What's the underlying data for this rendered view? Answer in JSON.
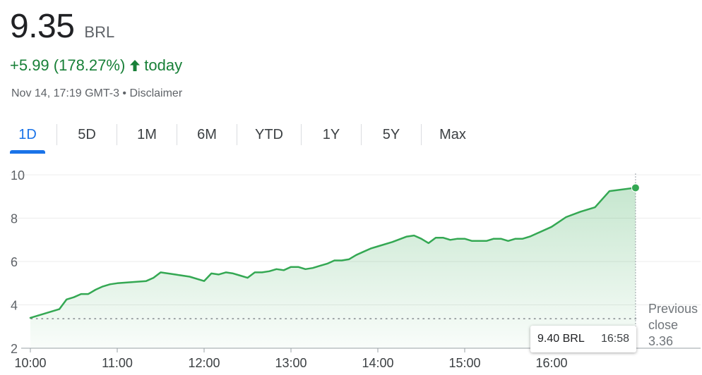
{
  "header": {
    "price": "9.35",
    "currency": "BRL",
    "change": "+5.99 (178.27%)",
    "change_suffix": "today",
    "timestamp": "Nov 14, 17:19 GMT-3",
    "separator": "•",
    "disclaimer": "Disclaimer"
  },
  "tabs": [
    {
      "label": "1D",
      "active": true
    },
    {
      "label": "5D"
    },
    {
      "label": "1M"
    },
    {
      "label": "6M"
    },
    {
      "label": "YTD"
    },
    {
      "label": "1Y"
    },
    {
      "label": "5Y"
    },
    {
      "label": "Max"
    }
  ],
  "tooltip": {
    "value": "9.40 BRL",
    "time": "16:58"
  },
  "colors": {
    "line": "#34a853",
    "positive_text": "#188038",
    "accent": "#1a73e8"
  },
  "chart_data": {
    "type": "area",
    "x_tick_labels": [
      "10:00",
      "11:00",
      "12:00",
      "13:00",
      "14:00",
      "15:00",
      "16:00"
    ],
    "y_tick_labels": [
      "2",
      "4",
      "6",
      "8",
      "10"
    ],
    "ylim": [
      2,
      10
    ],
    "grid": "horizontal",
    "previous_close": {
      "label_1": "Previous",
      "label_2": "close",
      "value": 3.36,
      "value_label": "3.36"
    },
    "series": [
      {
        "points": [
          [
            "10:00",
            3.4
          ],
          [
            "10:20",
            3.8
          ],
          [
            "10:25",
            4.25
          ],
          [
            "10:30",
            4.35
          ],
          [
            "10:35",
            4.5
          ],
          [
            "10:40",
            4.5
          ],
          [
            "10:45",
            4.7
          ],
          [
            "10:50",
            4.85
          ],
          [
            "10:55",
            4.95
          ],
          [
            "11:00",
            5.0
          ],
          [
            "11:10",
            5.05
          ],
          [
            "11:20",
            5.1
          ],
          [
            "11:25",
            5.25
          ],
          [
            "11:30",
            5.5
          ],
          [
            "11:40",
            5.4
          ],
          [
            "11:50",
            5.3
          ],
          [
            "12:00",
            5.1
          ],
          [
            "12:05",
            5.45
          ],
          [
            "12:10",
            5.4
          ],
          [
            "12:15",
            5.5
          ],
          [
            "12:20",
            5.45
          ],
          [
            "12:25",
            5.35
          ],
          [
            "12:30",
            5.25
          ],
          [
            "12:35",
            5.5
          ],
          [
            "12:40",
            5.5
          ],
          [
            "12:45",
            5.55
          ],
          [
            "12:50",
            5.65
          ],
          [
            "12:55",
            5.6
          ],
          [
            "13:00",
            5.75
          ],
          [
            "13:05",
            5.75
          ],
          [
            "13:10",
            5.65
          ],
          [
            "13:15",
            5.7
          ],
          [
            "13:20",
            5.8
          ],
          [
            "13:25",
            5.9
          ],
          [
            "13:30",
            6.05
          ],
          [
            "13:35",
            6.05
          ],
          [
            "13:40",
            6.1
          ],
          [
            "13:45",
            6.3
          ],
          [
            "13:50",
            6.45
          ],
          [
            "13:55",
            6.6
          ],
          [
            "14:00",
            6.7
          ],
          [
            "14:10",
            6.9
          ],
          [
            "14:20",
            7.15
          ],
          [
            "14:25",
            7.2
          ],
          [
            "14:30",
            7.05
          ],
          [
            "14:35",
            6.85
          ],
          [
            "14:40",
            7.1
          ],
          [
            "14:45",
            7.1
          ],
          [
            "14:50",
            7.0
          ],
          [
            "14:55",
            7.05
          ],
          [
            "15:00",
            7.05
          ],
          [
            "15:05",
            6.95
          ],
          [
            "15:10",
            6.95
          ],
          [
            "15:15",
            6.95
          ],
          [
            "15:20",
            7.05
          ],
          [
            "15:25",
            7.05
          ],
          [
            "15:30",
            6.95
          ],
          [
            "15:35",
            7.05
          ],
          [
            "15:40",
            7.05
          ],
          [
            "15:45",
            7.15
          ],
          [
            "16:00",
            7.6
          ],
          [
            "16:10",
            8.05
          ],
          [
            "16:20",
            8.3
          ],
          [
            "16:30",
            8.5
          ],
          [
            "16:40",
            9.25
          ],
          [
            "16:58",
            9.4
          ]
        ]
      }
    ]
  }
}
